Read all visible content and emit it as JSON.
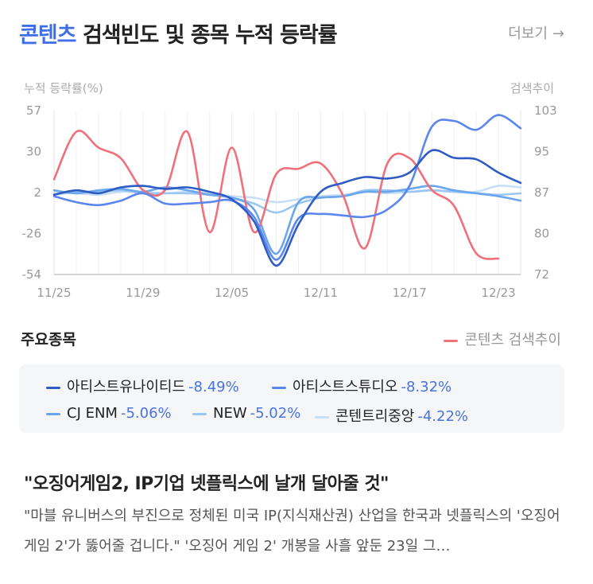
{
  "header": {
    "title_accent": "콘텐츠",
    "title_rest": "검색빈도 및 종목 누적 등락률",
    "more_label": "더보기",
    "more_arrow": "→"
  },
  "chart_data": {
    "type": "line",
    "left_axis_label": "누적 등락률(%)",
    "right_axis_label": "검색추이",
    "left_ylim": [
      -54,
      57
    ],
    "left_ticks": [
      "57",
      "30",
      "2",
      "-26",
      "-54"
    ],
    "right_ylim": [
      72,
      103
    ],
    "right_ticks": [
      "103",
      "95",
      "87",
      "80",
      "72"
    ],
    "x_ticks": [
      "11/25",
      "11/29",
      "12/05",
      "12/11",
      "12/17",
      "12/23"
    ],
    "x_tick_index": [
      0,
      4,
      8,
      12,
      16,
      20
    ],
    "grid": "vertical",
    "series": [
      {
        "name": "아티스트유나이티드",
        "axis": "left",
        "color": "#2f5bc4",
        "values": [
          0,
          3,
          1,
          5,
          6,
          4,
          5,
          2,
          -3,
          -18,
          -48,
          -20,
          2,
          8,
          12,
          11,
          15,
          30,
          25,
          24,
          15,
          8
        ]
      },
      {
        "name": "아티스트스튜디오",
        "axis": "left",
        "color": "#5a86ee",
        "values": [
          -1,
          -5,
          -7,
          -4,
          1,
          -6,
          -6,
          -5,
          -4,
          -15,
          -44,
          -16,
          -13,
          -14,
          -15,
          -10,
          6,
          46,
          50,
          44,
          54,
          45
        ]
      },
      {
        "name": "CJ ENM",
        "axis": "left",
        "color": "#6ba6ec",
        "values": [
          3,
          1,
          3,
          4,
          2,
          5,
          3,
          0,
          -2,
          -10,
          -40,
          -5,
          -2,
          -1,
          2,
          2,
          4,
          6,
          3,
          1,
          -1,
          -4
        ]
      },
      {
        "name": "NEW",
        "axis": "left",
        "color": "#9cc7f2",
        "values": [
          0,
          2,
          2,
          3,
          1,
          1,
          1,
          0,
          -2,
          -6,
          -12,
          -6,
          -2,
          -1,
          3,
          3,
          2,
          3,
          2,
          1,
          0,
          1
        ]
      },
      {
        "name": "콘텐트리중앙",
        "axis": "left",
        "color": "#c7dff7",
        "values": [
          1,
          1,
          0,
          2,
          2,
          1,
          2,
          1,
          -1,
          -2,
          -5,
          -3,
          -1,
          0,
          2,
          1,
          2,
          3,
          2,
          2,
          6,
          5
        ]
      },
      {
        "name": "콘텐츠 검색추이",
        "axis": "right",
        "color": "#f0707a",
        "values": [
          90,
          99,
          96,
          94,
          88,
          88,
          99,
          80,
          96,
          80,
          91,
          92,
          93,
          87,
          77,
          93,
          94,
          88,
          85,
          76,
          75,
          null
        ]
      }
    ]
  },
  "section": {
    "label": "주요종목",
    "search_legend": "콘텐츠 검색추이"
  },
  "stocks": [
    {
      "name": "아티스트유나이티드",
      "value": "-8.49%",
      "color": "#2f5bc4"
    },
    {
      "name": "아티스트스튜디오",
      "value": "-8.32%",
      "color": "#5a86ee"
    },
    {
      "name": "CJ ENM",
      "value": "-5.06%",
      "color": "#6ba6ec"
    },
    {
      "name": "NEW",
      "value": "-5.02%",
      "color": "#9cc7f2"
    },
    {
      "name": "콘텐트리중앙",
      "value": "-4.22%",
      "color": "#c7dff7"
    }
  ],
  "article": {
    "headline": "\"오징어게임2, IP기업 넷플릭스에 날개 달아줄 것\"",
    "summary": "\"마블 유니버스의 부진으로 정체된 미국 IP(지식재산권) 산업을 한국과 넷플릭스의 '오징어 게임 2'가 뚫어줄 겁니다.\" '오징어 게임 2' 개봉을 사흘 앞둔 23일 그…"
  }
}
